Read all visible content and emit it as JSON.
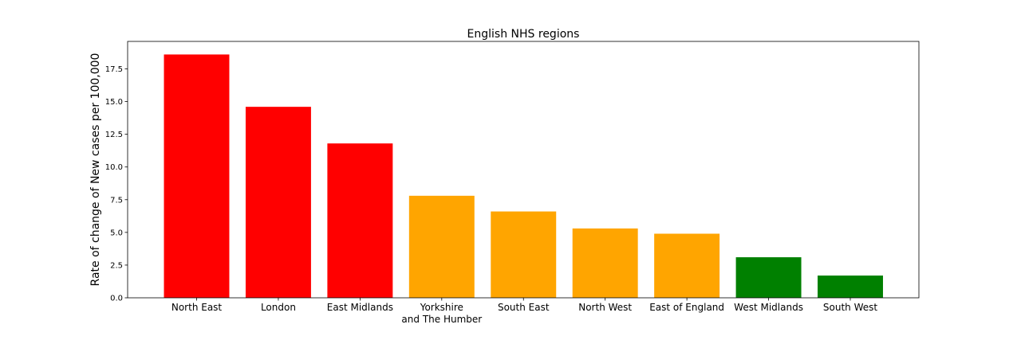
{
  "chart_data": {
    "type": "bar",
    "title": "English NHS regions",
    "xlabel": "",
    "ylabel": "Rate of change of New cases per 100,000",
    "ylim": [
      0,
      19.6
    ],
    "yticks": [
      "0.0",
      "2.5",
      "5.0",
      "7.5",
      "10.0",
      "12.5",
      "15.0",
      "17.5"
    ],
    "ytick_values": [
      0,
      2.5,
      5,
      7.5,
      10,
      12.5,
      15,
      17.5
    ],
    "grid": false,
    "categories": [
      [
        "North East"
      ],
      [
        "London"
      ],
      [
        "East Midlands"
      ],
      [
        "Yorkshire",
        "and The Humber"
      ],
      [
        "South East"
      ],
      [
        "North West"
      ],
      [
        "East of England"
      ],
      [
        "West Midlands"
      ],
      [
        "South West"
      ]
    ],
    "values": [
      18.6,
      14.6,
      11.8,
      7.8,
      6.6,
      5.3,
      4.9,
      3.1,
      1.7
    ],
    "bar_colors": [
      "#ff0000",
      "#ff0000",
      "#ff0000",
      "#ffa500",
      "#ffa500",
      "#ffa500",
      "#ffa500",
      "#008000",
      "#008000"
    ]
  }
}
